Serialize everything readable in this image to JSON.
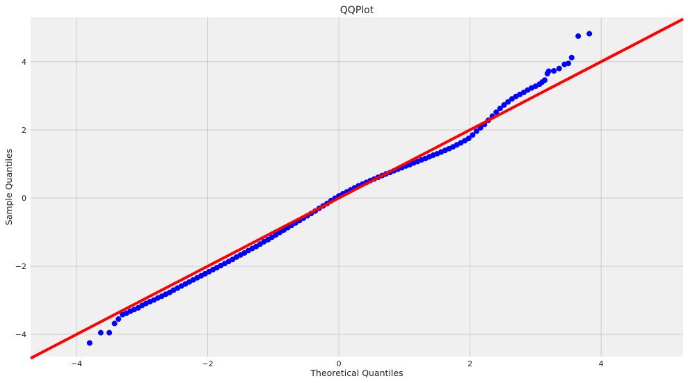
{
  "chart_data": {
    "type": "scatter",
    "title": "QQPlot",
    "xlabel": "Theoretical Quantiles",
    "ylabel": "Sample Quantiles",
    "xlim": [
      -4.7,
      5.25
    ],
    "ylim": [
      -4.65,
      5.3
    ],
    "xticks": [
      -4,
      -2,
      0,
      2,
      4
    ],
    "yticks": [
      -4,
      -2,
      0,
      2,
      4
    ],
    "xtick_labels": [
      "−4",
      "−2",
      "0",
      "2",
      "4"
    ],
    "ytick_labels": [
      "−4",
      "−2",
      "0",
      "2",
      "4"
    ],
    "grid": true,
    "colors": {
      "background": "#f0f0f0",
      "grid": "#cbcbcb",
      "points": "#0000ff",
      "reference_line": "#ff0000"
    },
    "reference_line": {
      "slope": 1.0,
      "intercept": 0.0
    },
    "series": [
      {
        "marker": "circle",
        "points": [
          [
            -3.8,
            -4.25
          ],
          [
            -3.63,
            -3.95
          ],
          [
            -3.5,
            -3.95
          ],
          [
            -3.42,
            -3.68
          ],
          [
            -3.36,
            -3.55
          ],
          [
            -3.3,
            -3.42
          ],
          [
            -3.24,
            -3.38
          ],
          [
            -3.18,
            -3.32
          ],
          [
            -3.12,
            -3.27
          ],
          [
            -3.06,
            -3.22
          ],
          [
            -3.0,
            -3.15
          ],
          [
            -2.94,
            -3.09
          ],
          [
            -2.88,
            -3.04
          ],
          [
            -2.82,
            -2.99
          ],
          [
            -2.76,
            -2.93
          ],
          [
            -2.7,
            -2.88
          ],
          [
            -2.64,
            -2.82
          ],
          [
            -2.58,
            -2.77
          ],
          [
            -2.52,
            -2.7
          ],
          [
            -2.46,
            -2.64
          ],
          [
            -2.4,
            -2.58
          ],
          [
            -2.34,
            -2.52
          ],
          [
            -2.28,
            -2.46
          ],
          [
            -2.22,
            -2.4
          ],
          [
            -2.16,
            -2.34
          ],
          [
            -2.1,
            -2.28
          ],
          [
            -2.04,
            -2.22
          ],
          [
            -1.98,
            -2.16
          ],
          [
            -1.92,
            -2.1
          ],
          [
            -1.86,
            -2.04
          ],
          [
            -1.8,
            -1.98
          ],
          [
            -1.74,
            -1.92
          ],
          [
            -1.68,
            -1.86
          ],
          [
            -1.62,
            -1.8
          ],
          [
            -1.56,
            -1.73
          ],
          [
            -1.5,
            -1.67
          ],
          [
            -1.44,
            -1.61
          ],
          [
            -1.38,
            -1.54
          ],
          [
            -1.32,
            -1.48
          ],
          [
            -1.26,
            -1.42
          ],
          [
            -1.2,
            -1.35
          ],
          [
            -1.14,
            -1.28
          ],
          [
            -1.08,
            -1.22
          ],
          [
            -1.02,
            -1.15
          ],
          [
            -0.96,
            -1.08
          ],
          [
            -0.9,
            -1.01
          ],
          [
            -0.84,
            -0.94
          ],
          [
            -0.78,
            -0.87
          ],
          [
            -0.72,
            -0.8
          ],
          [
            -0.66,
            -0.73
          ],
          [
            -0.6,
            -0.66
          ],
          [
            -0.54,
            -0.59
          ],
          [
            -0.48,
            -0.52
          ],
          [
            -0.42,
            -0.45
          ],
          [
            -0.36,
            -0.38
          ],
          [
            -0.3,
            -0.3
          ],
          [
            -0.24,
            -0.23
          ],
          [
            -0.18,
            -0.16
          ],
          [
            -0.12,
            -0.08
          ],
          [
            -0.06,
            -0.01
          ],
          [
            0.0,
            0.06
          ],
          [
            0.06,
            0.12
          ],
          [
            0.12,
            0.18
          ],
          [
            0.18,
            0.24
          ],
          [
            0.24,
            0.3
          ],
          [
            0.3,
            0.36
          ],
          [
            0.36,
            0.41
          ],
          [
            0.42,
            0.46
          ],
          [
            0.48,
            0.51
          ],
          [
            0.54,
            0.56
          ],
          [
            0.6,
            0.61
          ],
          [
            0.66,
            0.66
          ],
          [
            0.72,
            0.71
          ],
          [
            0.78,
            0.75
          ],
          [
            0.84,
            0.8
          ],
          [
            0.9,
            0.85
          ],
          [
            0.96,
            0.89
          ],
          [
            1.02,
            0.94
          ],
          [
            1.08,
            0.98
          ],
          [
            1.14,
            1.03
          ],
          [
            1.2,
            1.07
          ],
          [
            1.26,
            1.12
          ],
          [
            1.32,
            1.16
          ],
          [
            1.38,
            1.21
          ],
          [
            1.44,
            1.26
          ],
          [
            1.5,
            1.3
          ],
          [
            1.56,
            1.35
          ],
          [
            1.62,
            1.4
          ],
          [
            1.68,
            1.45
          ],
          [
            1.74,
            1.5
          ],
          [
            1.8,
            1.56
          ],
          [
            1.86,
            1.62
          ],
          [
            1.92,
            1.68
          ],
          [
            1.98,
            1.75
          ],
          [
            2.04,
            1.85
          ],
          [
            2.1,
            1.96
          ],
          [
            2.16,
            2.06
          ],
          [
            2.22,
            2.16
          ],
          [
            2.28,
            2.28
          ],
          [
            2.34,
            2.4
          ],
          [
            2.4,
            2.52
          ],
          [
            2.46,
            2.63
          ],
          [
            2.52,
            2.73
          ],
          [
            2.58,
            2.82
          ],
          [
            2.64,
            2.91
          ],
          [
            2.7,
            2.98
          ],
          [
            2.76,
            3.04
          ],
          [
            2.82,
            3.1
          ],
          [
            2.88,
            3.17
          ],
          [
            2.94,
            3.23
          ],
          [
            3.0,
            3.28
          ],
          [
            3.06,
            3.34
          ],
          [
            3.1,
            3.4
          ],
          [
            3.14,
            3.46
          ],
          [
            3.18,
            3.65
          ],
          [
            3.2,
            3.72
          ],
          [
            3.28,
            3.73
          ],
          [
            3.36,
            3.8
          ],
          [
            3.44,
            3.92
          ],
          [
            3.5,
            3.95
          ],
          [
            3.55,
            4.12
          ],
          [
            3.65,
            4.75
          ],
          [
            3.82,
            4.82
          ]
        ]
      }
    ]
  }
}
